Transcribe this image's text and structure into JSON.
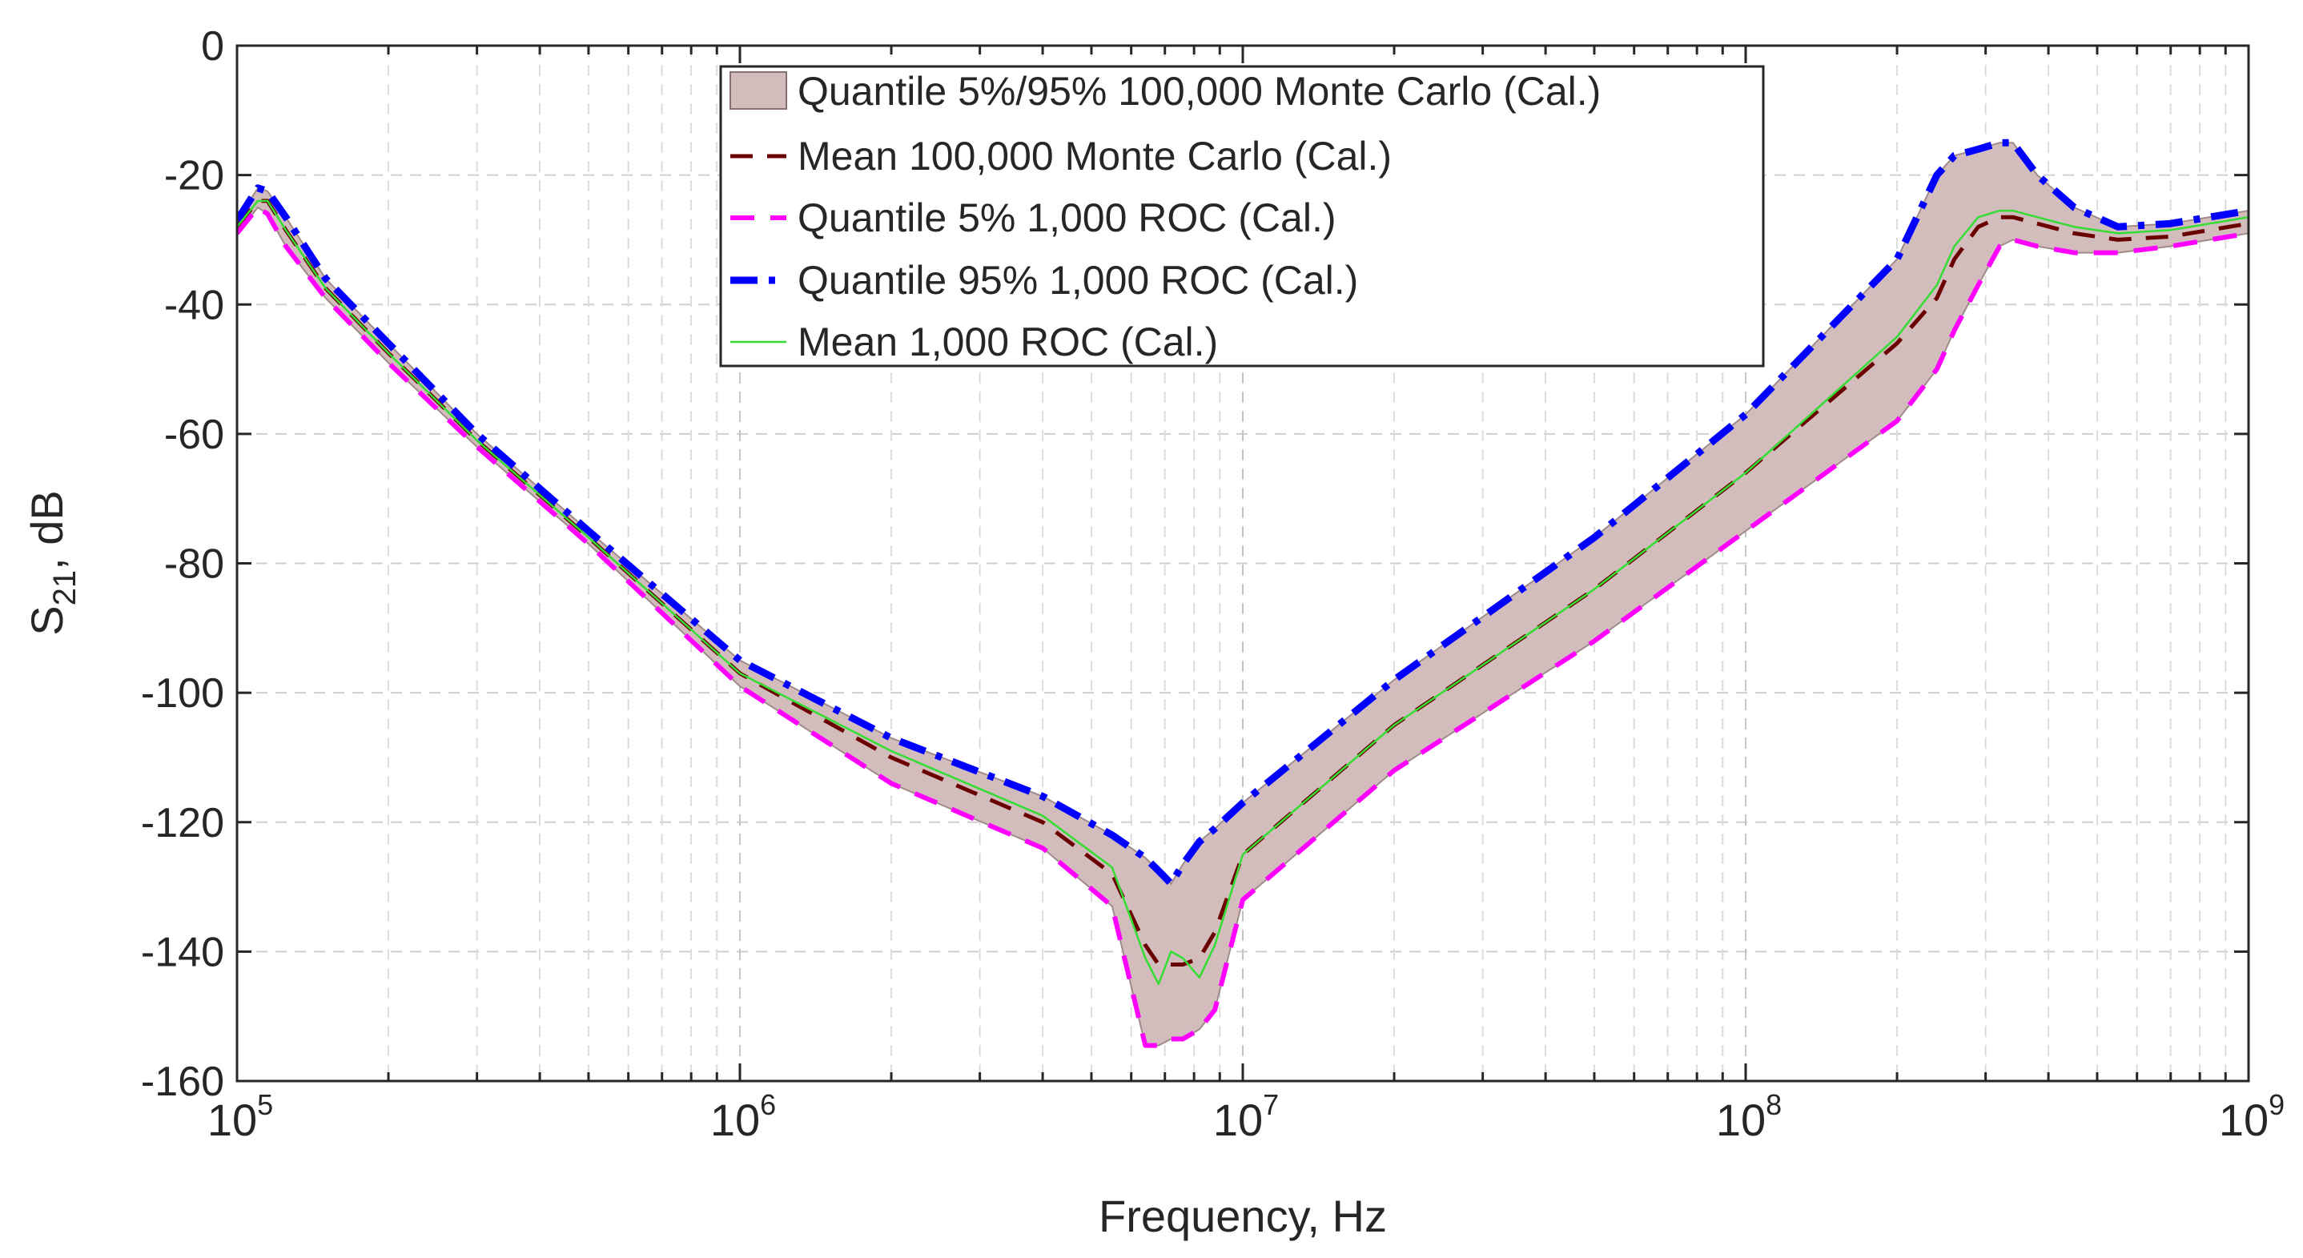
{
  "chart_data": {
    "type": "line",
    "title": "",
    "xlabel": "Frequency, Hz",
    "ylabel": {
      "base": "S",
      "subscript": "21",
      "suffix": ", dB"
    },
    "xscale": "log",
    "xlim": [
      100000,
      1000000000
    ],
    "ylim": [
      -160,
      0
    ],
    "xticks": [
      {
        "value": 100000,
        "base": "10",
        "exp": "5"
      },
      {
        "value": 1000000,
        "base": "10",
        "exp": "6"
      },
      {
        "value": 10000000,
        "base": "10",
        "exp": "7"
      },
      {
        "value": 100000000,
        "base": "10",
        "exp": "8"
      },
      {
        "value": 1000000000,
        "base": "10",
        "exp": "9"
      }
    ],
    "yticks": [
      0,
      -20,
      -40,
      -60,
      -80,
      -100,
      -120,
      -140,
      -160
    ],
    "grid": true,
    "legend_position": "top-center",
    "x": [
      100000,
      110000,
      115000,
      125000,
      150000,
      200000,
      300000,
      500000,
      1000000,
      2000000,
      4000000,
      5500000,
      6400000,
      6800000,
      7200000,
      7600000,
      8200000,
      8800000,
      10000000,
      20000000,
      50000000,
      100000000,
      200000000,
      240000000,
      260000000,
      290000000,
      320000000,
      340000000,
      380000000,
      450000000,
      550000000,
      700000000,
      1000000000
    ],
    "series": [
      {
        "name": "Quantile 5%/95% 100,000 Monte Carlo (Cal.)",
        "kind": "band",
        "color": "#d2bcbc",
        "lower": [
          -29,
          -25,
          -26,
          -31,
          -39,
          -49,
          -62,
          -77,
          -99,
          -114,
          -124,
          -133,
          -154.5,
          -154.5,
          -153.5,
          -153.5,
          -152,
          -149,
          -132,
          -112,
          -92,
          -75,
          -58,
          -50,
          -44,
          -37,
          -31,
          -30,
          -31,
          -32,
          -32,
          -31,
          -29
        ],
        "upper": [
          -27,
          -22,
          -22.5,
          -26.5,
          -36,
          -46,
          -60,
          -75,
          -95,
          -107,
          -116,
          -122,
          -125.5,
          -127.5,
          -129.5,
          -126.5,
          -123,
          -121,
          -117,
          -98,
          -76,
          -57,
          -33,
          -20,
          -17,
          -16,
          -15,
          -15,
          -20,
          -25,
          -28,
          -27.5,
          -25.5
        ]
      },
      {
        "name": "Mean 100,000 Monte Carlo (Cal.)",
        "kind": "line",
        "color": "#6b0000",
        "dash": "28 18",
        "width": 5,
        "values": [
          -28,
          -24,
          -24,
          -28.5,
          -37.5,
          -47.5,
          -61,
          -76,
          -97,
          -110,
          -120,
          -128,
          -139,
          -142,
          -142,
          -142,
          -141,
          -137,
          -125,
          -105,
          -84,
          -66,
          -46,
          -39,
          -33,
          -28,
          -26.5,
          -26.5,
          -27.5,
          -29,
          -30,
          -29.5,
          -27.5
        ]
      },
      {
        "name": "Quantile 5% 1,000 ROC (Cal.)",
        "kind": "line",
        "color": "#ff00ff",
        "dash": "30 20",
        "width": 6,
        "values": [
          -29,
          -25,
          -26,
          -31,
          -39,
          -49,
          -62,
          -77,
          -99,
          -114,
          -124,
          -133,
          -154.5,
          -154.5,
          -153.5,
          -153.5,
          -152,
          -149,
          -132,
          -112,
          -92,
          -75,
          -58,
          -50,
          -44,
          -37,
          -31,
          -30,
          -31,
          -32,
          -32,
          -31,
          -29
        ]
      },
      {
        "name": "Quantile 95% 1,000 ROC (Cal.)",
        "kind": "line",
        "color": "#0000ff",
        "dash": "34 14 8 14",
        "width": 9,
        "values": [
          -27,
          -22,
          -22.5,
          -26.5,
          -36,
          -46,
          -60,
          -75,
          -95,
          -107,
          -116,
          -122,
          -125.5,
          -127.5,
          -129.5,
          -126.5,
          -123,
          -121,
          -117,
          -98,
          -76,
          -57,
          -33,
          -20,
          -17,
          -16,
          -15,
          -15,
          -20,
          -25,
          -28,
          -27.5,
          -25.5
        ]
      },
      {
        "name": "Mean 1,000 ROC (Cal.)",
        "kind": "line",
        "color": "#33dd33",
        "dash": "",
        "width": 2.5,
        "values": [
          -28,
          -24,
          -24,
          -28.5,
          -37.5,
          -47.5,
          -61,
          -76,
          -97,
          -109,
          -119,
          -127,
          -141,
          -145,
          -140,
          -141,
          -144,
          -139,
          -125,
          -105,
          -84,
          -66,
          -45,
          -37,
          -31,
          -26.5,
          -25.5,
          -25.5,
          -26.5,
          -28,
          -29,
          -28.5,
          -26.5
        ]
      }
    ]
  }
}
